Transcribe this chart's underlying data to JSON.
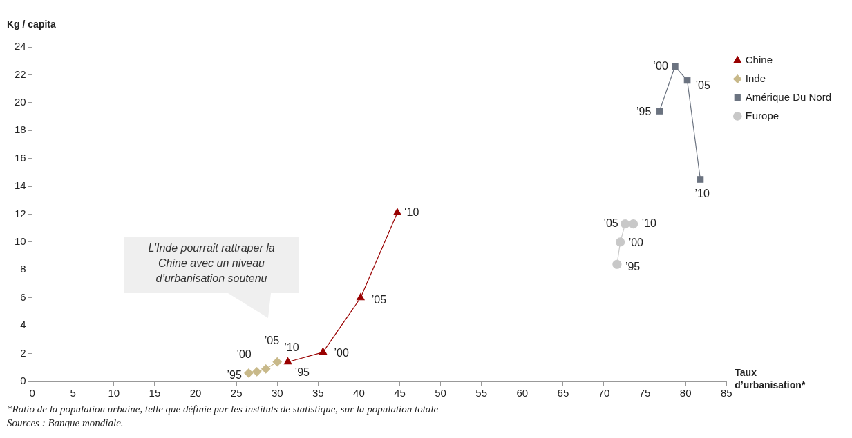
{
  "chart_data": {
    "type": "line",
    "ylabel": "Kg / capita",
    "xlabel": "Taux d’urbanisation*",
    "xlim": [
      0,
      85
    ],
    "xticks": [
      0,
      5,
      10,
      15,
      20,
      25,
      30,
      35,
      40,
      45,
      50,
      55,
      60,
      65,
      70,
      75,
      80,
      85
    ],
    "ylim": [
      0,
      24
    ],
    "yticks": [
      0,
      2,
      4,
      6,
      8,
      10,
      12,
      14,
      16,
      18,
      20,
      22,
      24
    ],
    "grid": false,
    "legend": "top right",
    "series": [
      {
        "name": "Chine",
        "color": "#990000",
        "marker": "triangle",
        "x": [
          31.3,
          35.6,
          40.2,
          44.7
        ],
        "values": [
          1.4,
          2.1,
          6.0,
          12.1
        ]
      },
      {
        "name": "Inde",
        "color": "#c8b98a",
        "marker": "diamond",
        "x": [
          26.5,
          27.5,
          28.6,
          30.0
        ],
        "values": [
          0.6,
          0.7,
          0.9,
          1.4
        ]
      },
      {
        "name": "Amérique Du Nord",
        "color": "#6b7380",
        "marker": "square",
        "x": [
          76.8,
          78.7,
          80.2,
          81.8
        ],
        "values": [
          19.4,
          22.6,
          21.6,
          14.5
        ]
      },
      {
        "name": "Europe",
        "color": "#c8c8c8",
        "marker": "circle",
        "x": [
          71.6,
          72.0,
          72.6,
          73.6
        ],
        "values": [
          8.4,
          10.0,
          11.3,
          11.3
        ]
      }
    ],
    "annotations": [
      "L’Inde pourrait rattraper la Chine avec un niveau d’urbanisation soutenu",
      {
        "text": "’95",
        "x": 31.3,
        "y": 1.4
      },
      {
        "text": "’00",
        "x": 35.6,
        "y": 2.1
      },
      {
        "text": "’05",
        "x": 40.2,
        "y": 6.0
      },
      {
        "text": "‘10",
        "x": 44.7,
        "y": 12.1
      },
      {
        "text": "’95",
        "x": 26.5,
        "y": 0.6
      },
      {
        "text": "’00",
        "x": 27.5,
        "y": 0.7
      },
      {
        "text": "’05",
        "x": 28.6,
        "y": 0.9
      },
      {
        "text": "’10",
        "x": 30.0,
        "y": 1.4
      },
      {
        "text": "’95",
        "x": 76.8,
        "y": 19.4
      },
      {
        "text": "‘00",
        "x": 78.7,
        "y": 22.6
      },
      {
        "text": "’05",
        "x": 80.2,
        "y": 21.6
      },
      {
        "text": "’10",
        "x": 81.8,
        "y": 14.5
      },
      {
        "text": "’95",
        "x": 71.6,
        "y": 8.4
      },
      {
        "text": "’00",
        "x": 72.0,
        "y": 10.0
      },
      {
        "text": "’05",
        "x": 72.6,
        "y": 11.3
      },
      {
        "text": "’10",
        "x": 73.6,
        "y": 11.3
      },
      "*Ratio de la population urbaine, telle que définie par les instituts de statistique, sur la population totale",
      "Sources : Banque mondiale."
    ]
  }
}
